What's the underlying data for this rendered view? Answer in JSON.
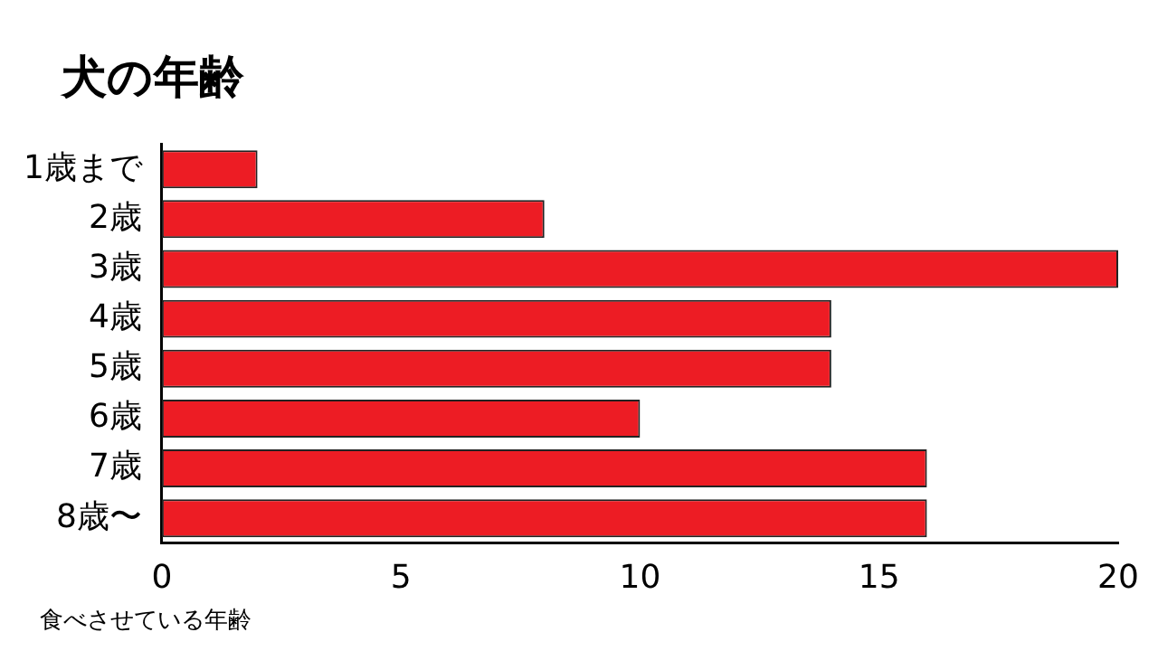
{
  "chart_data": {
    "type": "bar",
    "orientation": "horizontal",
    "title": "犬の年齢",
    "categories": [
      "1歳まで",
      "2歳",
      "3歳",
      "4歳",
      "5歳",
      "6歳",
      "7歳",
      "8歳〜"
    ],
    "values": [
      2,
      8,
      20,
      14,
      14,
      10,
      16,
      16
    ],
    "color": "#ed1c24",
    "xlim": [
      0,
      20
    ],
    "xticks": [
      0,
      5,
      10,
      15,
      20
    ],
    "grid": false,
    "legend": false,
    "annotations": [
      "食べさせている年齢"
    ]
  }
}
